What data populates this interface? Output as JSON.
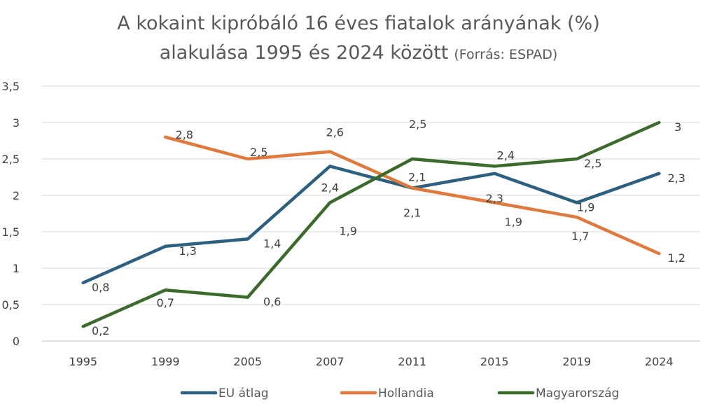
{
  "chart_data": {
    "type": "line",
    "title_line1": "A kokaint kipróbáló 16 éves fiatalok arányának (%)",
    "title_line2": "alakulása 1995 és 2024 között",
    "title_source": "(Forrás: ESPAD)",
    "categories": [
      "1995",
      "1999",
      "2005",
      "2007",
      "2011",
      "2015",
      "2019",
      "2024"
    ],
    "ylim": [
      0,
      3.5
    ],
    "yticks": [
      "0",
      "0,5",
      "1",
      "1,5",
      "2",
      "2,5",
      "3",
      "3,5"
    ],
    "grid": true,
    "legend_position": "bottom",
    "decimal_separator": ",",
    "series": [
      {
        "name": "EU átlag",
        "color": "#2c5f80",
        "values": [
          0.8,
          1.3,
          1.4,
          2.4,
          2.1,
          2.3,
          1.9,
          2.3
        ]
      },
      {
        "name": "Hollandia",
        "color": "#e07a3c",
        "values": [
          null,
          2.8,
          2.5,
          2.6,
          2.1,
          1.9,
          1.7,
          1.2
        ]
      },
      {
        "name": "Magyarország",
        "color": "#3a6b2a",
        "values": [
          0.2,
          0.7,
          0.6,
          1.9,
          2.5,
          2.4,
          2.5,
          3
        ]
      }
    ]
  }
}
